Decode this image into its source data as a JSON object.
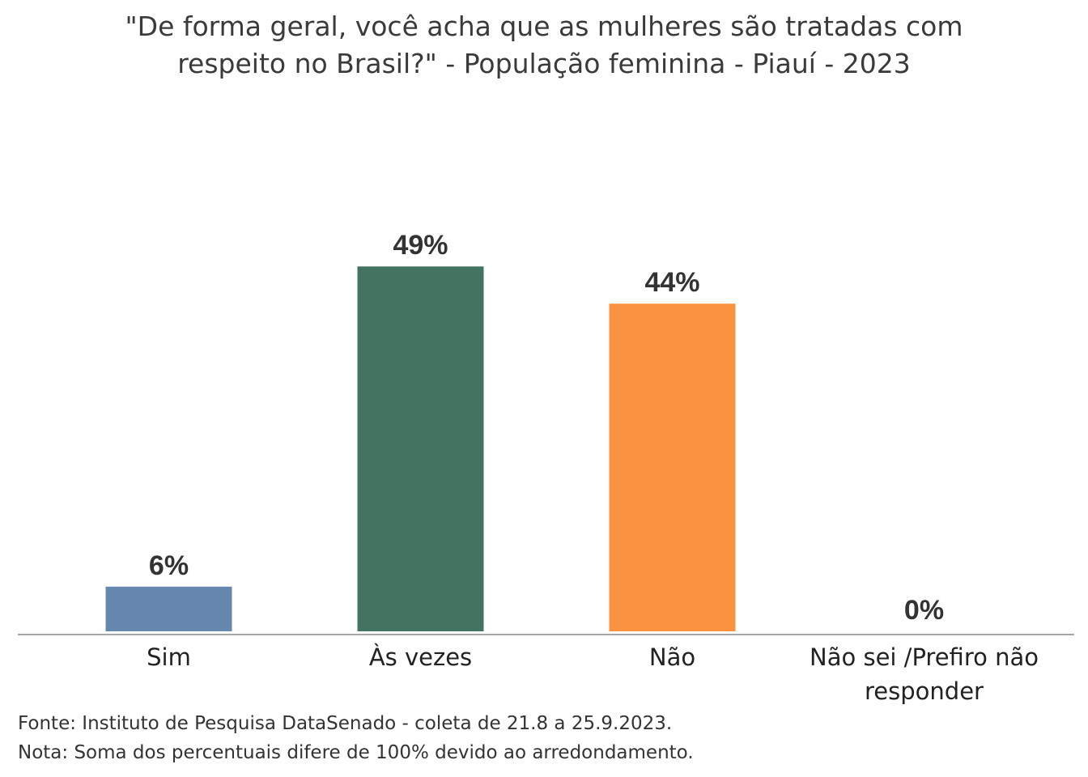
{
  "chart_data": {
    "type": "bar",
    "title_lines": [
      "\"De forma geral, você acha que as mulheres são tratadas com",
      "respeito no Brasil?\" - População feminina - Piauí - 2023"
    ],
    "categories": [
      [
        "Sim"
      ],
      [
        "Às vezes"
      ],
      [
        "Não"
      ],
      [
        "Não sei /Prefiro não",
        "responder"
      ]
    ],
    "values": [
      6,
      49,
      44,
      0
    ],
    "value_labels": [
      "6%",
      "49%",
      "44%",
      "0%"
    ],
    "colors": [
      "#6688AE",
      "#437462",
      "#FA923F",
      "#CCCCCC"
    ],
    "ylim": [
      0,
      50
    ],
    "grid": false
  },
  "notes": {
    "source": "Fonte: Instituto de Pesquisa DataSenado - coleta de 21.8 a 25.9.2023.",
    "note": "Nota: Soma dos percentuais difere de 100% devido ao arredondamento."
  }
}
